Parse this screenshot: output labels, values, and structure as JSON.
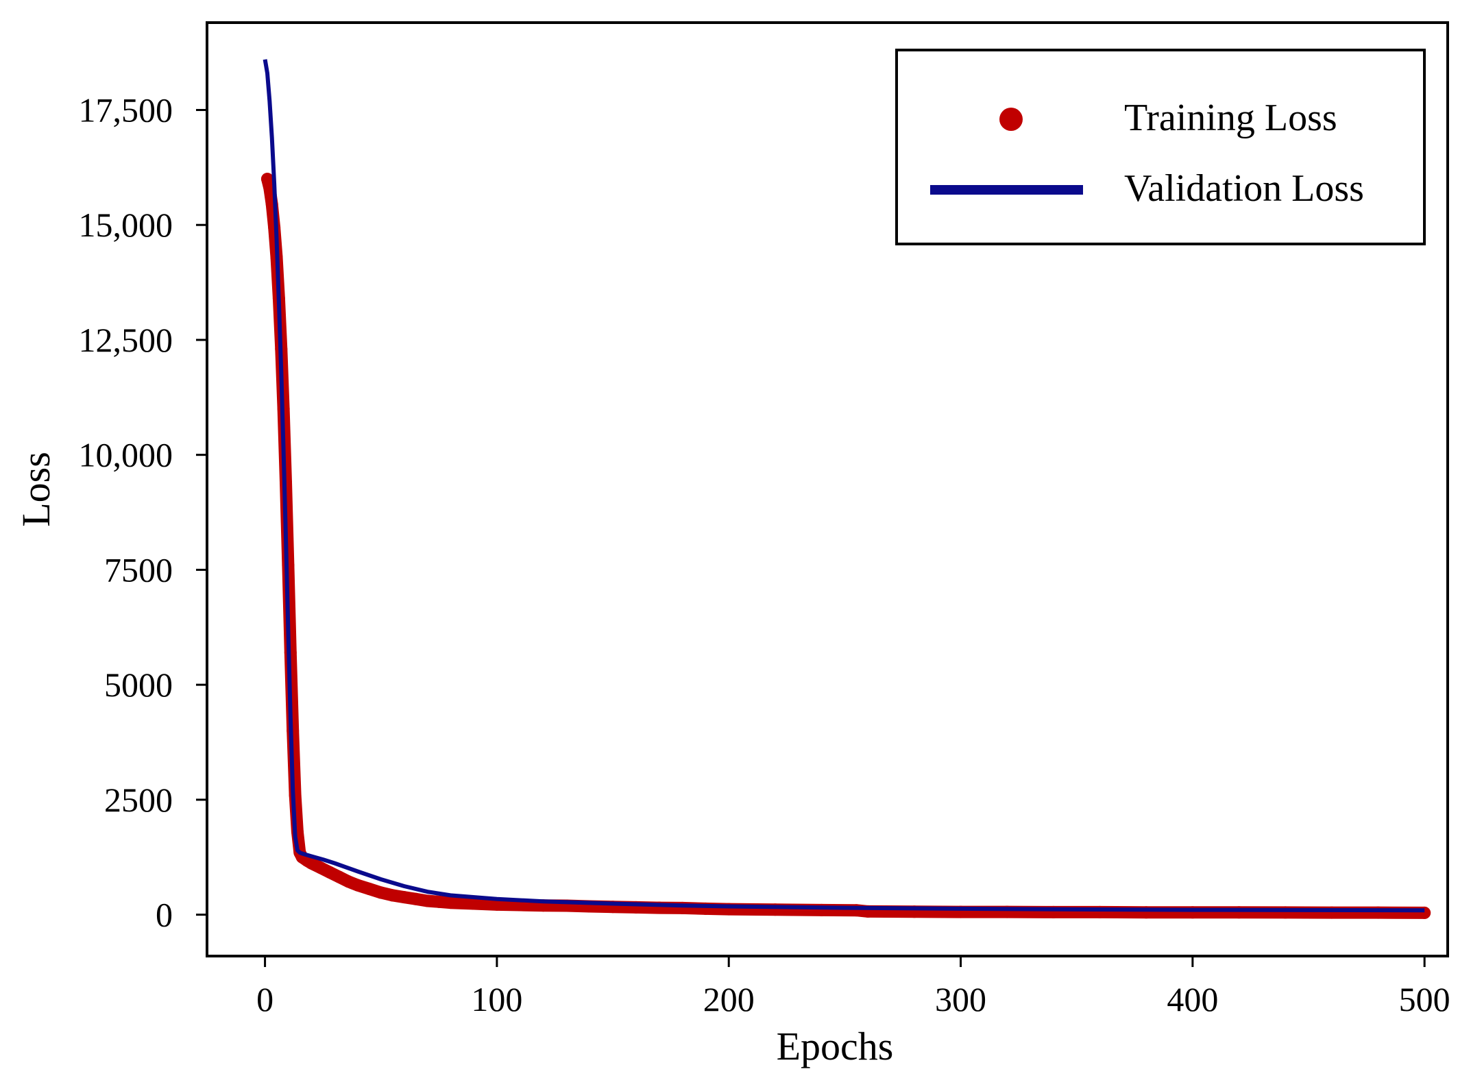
{
  "chart_data": {
    "type": "line",
    "title": "",
    "xlabel": "Epochs",
    "ylabel": "Loss",
    "xlim": [
      -25,
      510
    ],
    "ylim": [
      -900,
      19400
    ],
    "x_ticks": [
      0,
      100,
      200,
      300,
      400,
      500
    ],
    "x_tick_labels": [
      "0",
      "100",
      "200",
      "300",
      "400",
      "500"
    ],
    "y_ticks": [
      0,
      2500,
      5000,
      7500,
      10000,
      12500,
      15000,
      17500
    ],
    "y_tick_labels": [
      "0",
      "2500",
      "5000",
      "7500",
      "10,000",
      "12,500",
      "15,000",
      "17,500"
    ],
    "grid": false,
    "legend_position": "top-right",
    "series": [
      {
        "name": "Training Loss",
        "style": "scatter",
        "color": "#c00000",
        "x": [
          1,
          2,
          3,
          4,
          5,
          6,
          7,
          8,
          9,
          10,
          11,
          12,
          13,
          14,
          15,
          16,
          18,
          20,
          24,
          28,
          32,
          36,
          40,
          45,
          50,
          55,
          60,
          65,
          70,
          75,
          80,
          90,
          100,
          110,
          120,
          130,
          140,
          150,
          160,
          170,
          180,
          190,
          200,
          220,
          240,
          255,
          260,
          280,
          300,
          320,
          340,
          360,
          380,
          400,
          420,
          440,
          460,
          480,
          500
        ],
        "y": [
          16000,
          15800,
          15450,
          14950,
          14300,
          13400,
          12300,
          11000,
          9400,
          7600,
          5700,
          4000,
          2600,
          1800,
          1350,
          1250,
          1180,
          1120,
          1020,
          920,
          820,
          720,
          640,
          560,
          480,
          420,
          380,
          340,
          300,
          280,
          260,
          240,
          220,
          210,
          200,
          195,
          180,
          170,
          160,
          150,
          145,
          130,
          120,
          110,
          100,
          95,
          70,
          65,
          60,
          60,
          55,
          55,
          50,
          50,
          50,
          48,
          45,
          45,
          40
        ]
      },
      {
        "name": "Validation Loss",
        "style": "line",
        "color": "#0a0a8c",
        "x": [
          0,
          1,
          2,
          3,
          4,
          5,
          6,
          7,
          8,
          9,
          10,
          11,
          12,
          13,
          14,
          15,
          16,
          20,
          25,
          30,
          40,
          50,
          60,
          70,
          80,
          100,
          120,
          150,
          180,
          200,
          250,
          300,
          350,
          400,
          450,
          500
        ],
        "y": [
          18600,
          18300,
          17700,
          16900,
          15900,
          14700,
          13300,
          11800,
          10100,
          8200,
          6200,
          4300,
          2700,
          1700,
          1400,
          1350,
          1330,
          1270,
          1200,
          1120,
          940,
          770,
          620,
          500,
          420,
          340,
          290,
          240,
          200,
          180,
          150,
          130,
          115,
          105,
          100,
          95
        ]
      }
    ]
  }
}
